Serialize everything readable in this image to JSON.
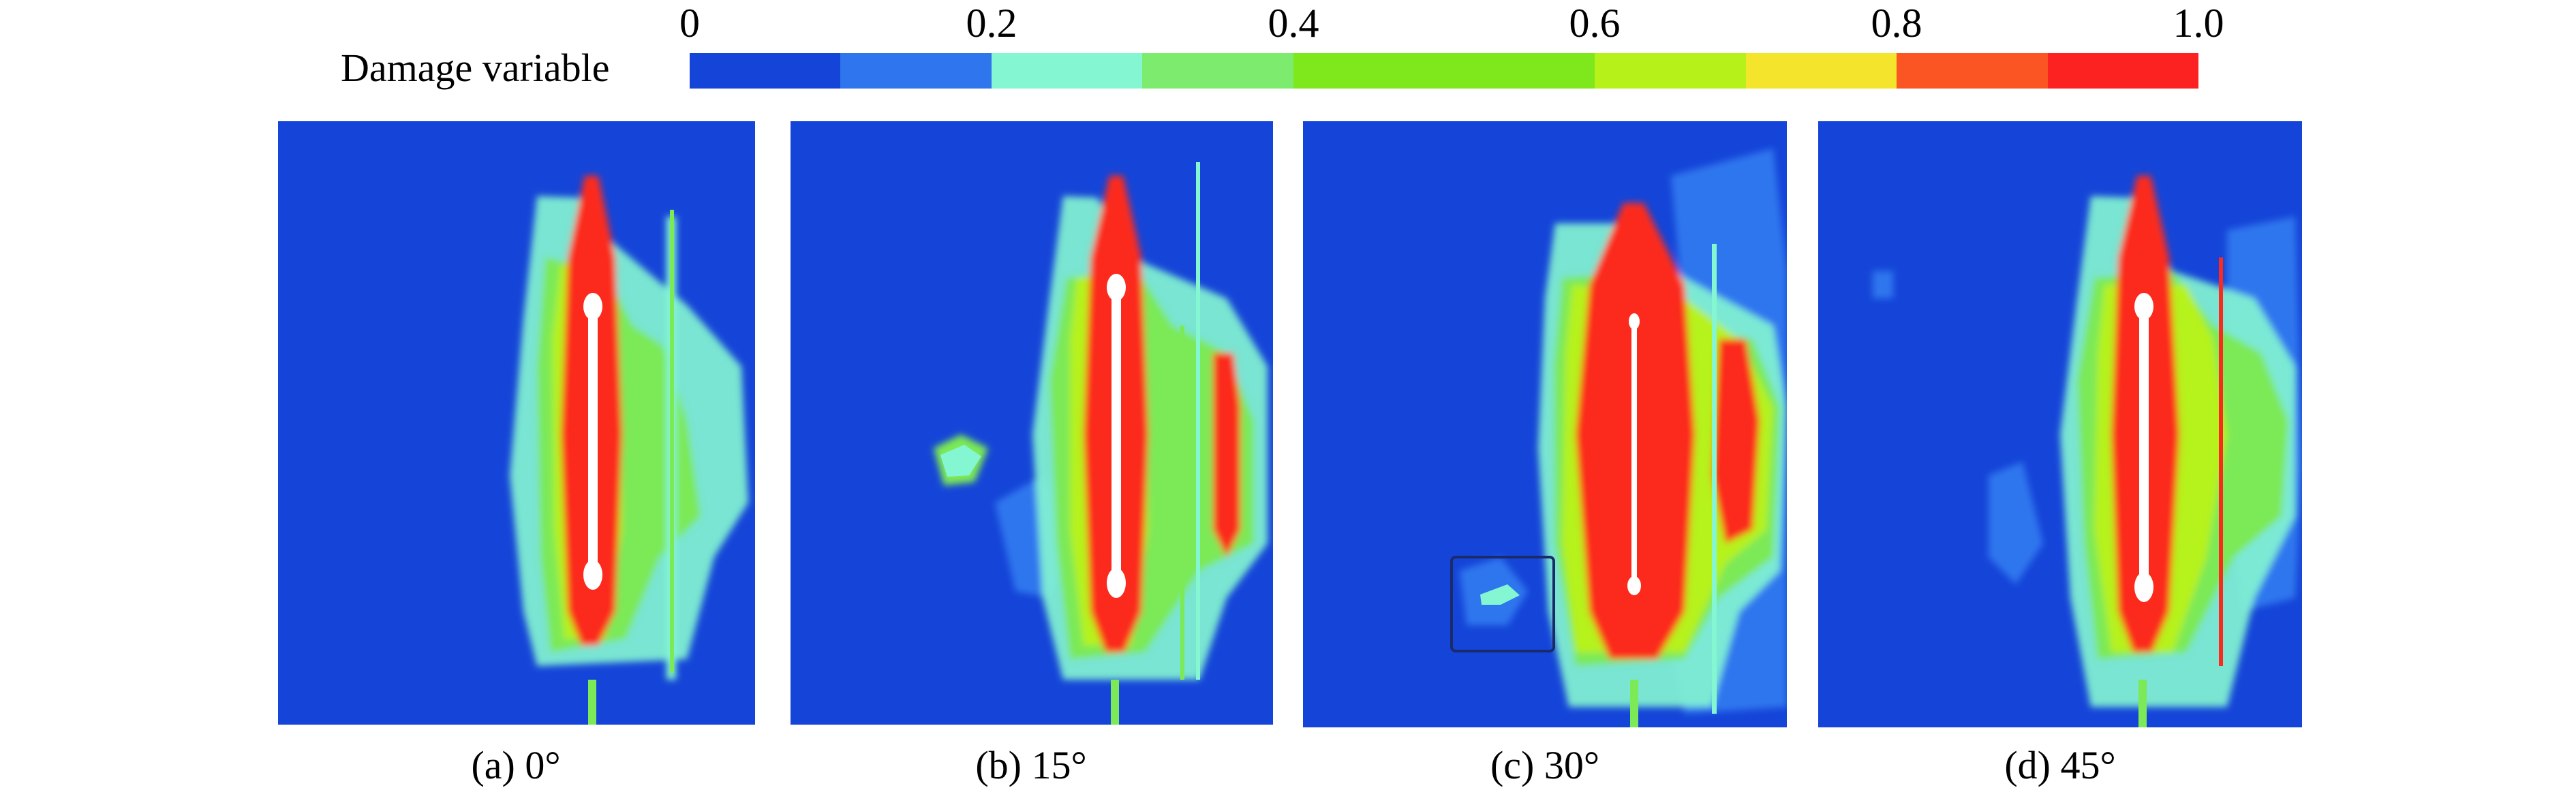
{
  "colorbar": {
    "title": "Damage variable",
    "ticks": [
      "0",
      "0.2",
      "0.4",
      "0.6",
      "0.8",
      "1.0"
    ],
    "colors": [
      "#1545d8",
      "#2f76ee",
      "#84f6d2",
      "#7ceb6e",
      "#7ee81c",
      "#7ee81c",
      "#b6f21a",
      "#f4e52c",
      "#fa5522",
      "#fc2222"
    ]
  },
  "palette": {
    "background": "#1545d8",
    "low": "#2f76ee",
    "cyan": "#84f6d2",
    "green": "#7ce956",
    "yellow": "#f4e52c",
    "red": "#fc2a1c",
    "crack": "#ffffff"
  },
  "panels": [
    {
      "id": "a",
      "caption": "(a) 0°"
    },
    {
      "id": "b",
      "caption": "(b) 15°"
    },
    {
      "id": "c",
      "caption": "(c) 30°"
    },
    {
      "id": "d",
      "caption": "(d) 45°"
    }
  ]
}
